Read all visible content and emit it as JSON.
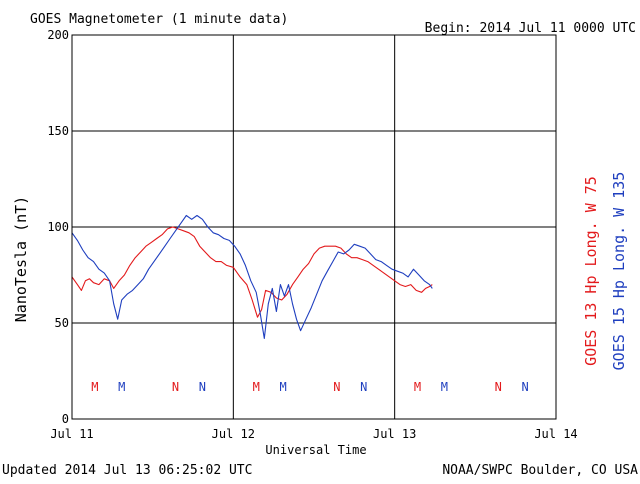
{
  "header": {
    "title": "GOES Magnetometer (1 minute data)",
    "begin": "Begin:  2014 Jul 11 0000 UTC"
  },
  "footer": {
    "updated": "Updated 2014 Jul 13 06:25:02 UTC",
    "credit": "NOAA/SWPC Boulder, CO USA"
  },
  "colors": {
    "goes13": "#e31a1c",
    "goes15": "#1f3fbf",
    "axis": "#000000"
  },
  "chart_data": {
    "type": "line",
    "title": "GOES Magnetometer (1 minute data)",
    "xlabel": "Universal Time",
    "ylabel": "NanoTesla (nT)",
    "xlim": [
      0,
      72
    ],
    "ylim": [
      0,
      200
    ],
    "x_unit": "hours since 2014 Jul 11 0000 UTC",
    "grid": true,
    "xticks": [
      {
        "x": 0,
        "label": "Jul 11"
      },
      {
        "x": 24,
        "label": "Jul 12"
      },
      {
        "x": 48,
        "label": "Jul 13"
      },
      {
        "x": 72,
        "label": "Jul 14"
      }
    ],
    "yticks": [
      0,
      50,
      100,
      150,
      200
    ],
    "series": [
      {
        "name": "GOES 13 Hp  Long. W 75",
        "color": "#e31a1c",
        "x": [
          0,
          0.8,
          1.4,
          2.0,
          2.6,
          3.2,
          4.0,
          4.8,
          5.6,
          6.2,
          7.0,
          7.8,
          8.6,
          9.4,
          10.2,
          11.0,
          11.8,
          12.6,
          13.4,
          14.2,
          15.0,
          15.8,
          16.6,
          17.4,
          18.2,
          19.0,
          19.8,
          20.6,
          21.4,
          22.2,
          23.0,
          24.0,
          25.0,
          26.0,
          26.8,
          27.6,
          28.2,
          28.8,
          29.6,
          30.4,
          31.2,
          32.0,
          32.8,
          33.6,
          34.4,
          35.2,
          36.0,
          36.8,
          37.6,
          38.4,
          39.2,
          40.0,
          40.8,
          41.6,
          42.4,
          43.2,
          44.0,
          44.8,
          45.6,
          46.4,
          47.2,
          48.0,
          48.8,
          49.6,
          50.4,
          51.2,
          52.0,
          52.6,
          53.2,
          53.6
        ],
        "values": [
          74,
          70,
          67,
          72,
          73,
          71,
          70,
          73,
          72,
          68,
          72,
          75,
          80,
          84,
          87,
          90,
          92,
          94,
          96,
          99,
          100,
          99,
          98,
          97,
          95,
          90,
          87,
          84,
          82,
          82,
          80,
          79,
          74,
          70,
          62,
          53,
          57,
          67,
          66,
          63,
          62,
          65,
          70,
          74,
          78,
          81,
          86,
          89,
          90,
          90,
          90,
          89,
          86,
          84,
          84,
          83,
          82,
          80,
          78,
          76,
          74,
          72,
          70,
          69,
          70,
          67,
          66,
          68,
          69,
          70
        ]
      },
      {
        "name": "GOES 15 Hp  Long. W 135",
        "color": "#1f3fbf",
        "x": [
          0,
          0.8,
          1.6,
          2.4,
          3.2,
          4.0,
          4.8,
          5.6,
          6.2,
          6.8,
          7.4,
          8.2,
          9.0,
          9.8,
          10.6,
          11.4,
          12.2,
          13.0,
          13.8,
          14.6,
          15.4,
          16.2,
          17.0,
          17.8,
          18.6,
          19.4,
          20.2,
          21.0,
          21.8,
          22.6,
          23.4,
          24.2,
          25.0,
          25.8,
          26.6,
          27.4,
          28.0,
          28.6,
          29.2,
          29.8,
          30.4,
          31.0,
          31.6,
          32.2,
          32.8,
          33.4,
          34.0,
          34.8,
          35.6,
          36.4,
          37.2,
          38.0,
          38.8,
          39.6,
          40.4,
          41.2,
          42.0,
          42.8,
          43.6,
          44.4,
          45.2,
          46.0,
          46.8,
          47.6,
          48.4,
          49.2,
          50.0,
          50.8,
          51.6,
          52.4,
          53.2,
          53.6
        ],
        "values": [
          97,
          93,
          88,
          84,
          82,
          78,
          76,
          72,
          60,
          52,
          62,
          65,
          67,
          70,
          73,
          78,
          82,
          86,
          90,
          94,
          98,
          102,
          106,
          104,
          106,
          104,
          100,
          97,
          96,
          94,
          93,
          90,
          86,
          80,
          72,
          66,
          55,
          42,
          60,
          68,
          56,
          70,
          64,
          70,
          60,
          52,
          46,
          52,
          58,
          65,
          72,
          77,
          82,
          87,
          86,
          88,
          91,
          90,
          89,
          86,
          83,
          82,
          80,
          78,
          77,
          76,
          74,
          78,
          75,
          72,
          70,
          68
        ]
      }
    ],
    "annotations": [
      {
        "x": 3.4,
        "label": "M",
        "series": 0
      },
      {
        "x": 7.4,
        "label": "M",
        "series": 1
      },
      {
        "x": 15.4,
        "label": "N",
        "series": 0
      },
      {
        "x": 19.4,
        "label": "N",
        "series": 1
      },
      {
        "x": 27.4,
        "label": "M",
        "series": 0
      },
      {
        "x": 31.4,
        "label": "M",
        "series": 1
      },
      {
        "x": 39.4,
        "label": "N",
        "series": 0
      },
      {
        "x": 43.4,
        "label": "N",
        "series": 1
      },
      {
        "x": 51.4,
        "label": "M",
        "series": 0
      },
      {
        "x": 55.4,
        "label": "M",
        "series": 1
      },
      {
        "x": 63.4,
        "label": "N",
        "series": 0
      },
      {
        "x": 67.4,
        "label": "N",
        "series": 1
      }
    ]
  }
}
